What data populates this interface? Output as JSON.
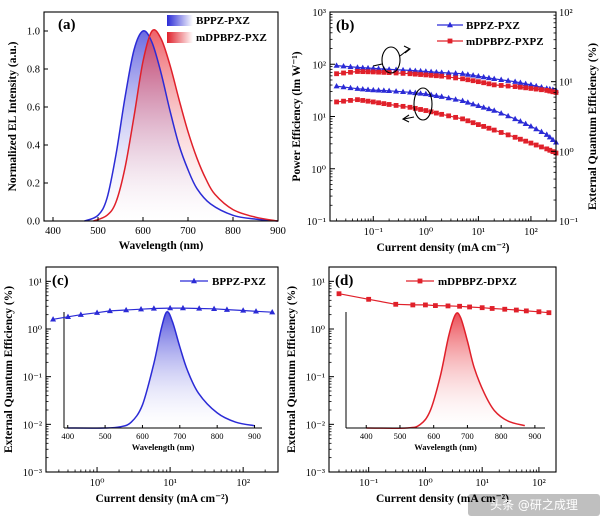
{
  "chart_data": [
    {
      "id": "a",
      "type": "area",
      "panel_label": "(a)",
      "xlabel": "Wavelength (nm)",
      "ylabel": "Normalized EL Intensity (a.u.)",
      "xlim": [
        380,
        900
      ],
      "ylim": [
        0,
        1.1
      ],
      "xticks": [
        "400",
        "500",
        "600",
        "700",
        "800",
        "900"
      ],
      "yticks": [
        "0.0",
        "0.2",
        "0.4",
        "0.6",
        "0.8",
        "1.0"
      ],
      "legend": [
        "BPPZ-PXZ",
        "mDPBPZ-PXZ"
      ],
      "series": [
        {
          "name": "BPPZ-PXZ",
          "color": "#2b2bd6",
          "peak": 601,
          "x": [
            470,
            500,
            520,
            540,
            560,
            580,
            600,
            620,
            640,
            660,
            680,
            700,
            720,
            750,
            800,
            850,
            900
          ],
          "y": [
            0.0,
            0.03,
            0.12,
            0.35,
            0.65,
            0.9,
            1.0,
            0.94,
            0.78,
            0.58,
            0.4,
            0.27,
            0.17,
            0.09,
            0.03,
            0.01,
            0.0
          ]
        },
        {
          "name": "mDPBPZ-PXZ",
          "color": "#e0202a",
          "peak": 622,
          "x": [
            490,
            520,
            540,
            560,
            580,
            600,
            620,
            640,
            660,
            680,
            700,
            720,
            740,
            760,
            800,
            850,
            900
          ],
          "y": [
            0.0,
            0.03,
            0.1,
            0.28,
            0.55,
            0.84,
            1.0,
            0.96,
            0.82,
            0.64,
            0.47,
            0.33,
            0.22,
            0.14,
            0.06,
            0.02,
            0.0
          ]
        }
      ]
    },
    {
      "id": "b",
      "type": "line",
      "panel_label": "(b)",
      "xlabel": "Current density (mA cm⁻²)",
      "ylabel": "Power Efficiency (lm W⁻¹)",
      "ylabel_right": "External Quantum Efficiency (%)",
      "xscale": "log",
      "yscale": "log",
      "xlim": [
        0.015,
        300
      ],
      "ylim": [
        0.1,
        1000
      ],
      "ylim_right": [
        0.1,
        100
      ],
      "xticks": [
        "10⁻¹",
        "10⁰",
        "10¹",
        "10²"
      ],
      "yticks": [
        "10⁻¹",
        "10⁰",
        "10¹",
        "10²",
        "10³"
      ],
      "yticks_right": [
        "10⁻¹",
        "10⁰",
        "10¹",
        "10²"
      ],
      "legend": [
        "BPPZ-PXZ",
        "mDPBPZ-PXPZ"
      ],
      "series": [
        {
          "name": "BPPZ-PXZ PE",
          "color": "#2b2bd6",
          "marker": "triangle",
          "x": [
            0.02,
            0.05,
            0.1,
            0.2,
            0.5,
            1,
            2,
            5,
            10,
            20,
            50,
            100,
            200,
            300
          ],
          "y": [
            38,
            34,
            32,
            31,
            29,
            27,
            24,
            20,
            16,
            13,
            9,
            6.5,
            4.5,
            3.2
          ]
        },
        {
          "name": "BPPZ-PXZ EQE",
          "color": "#2b2bd6",
          "marker": "triangle",
          "x": [
            0.02,
            0.05,
            0.1,
            0.2,
            0.5,
            1,
            2,
            5,
            10,
            20,
            50,
            100,
            200,
            300
          ],
          "y": [
            17,
            16,
            15.5,
            15,
            14.5,
            14,
            13.5,
            13,
            12,
            11,
            10,
            9,
            8,
            7.5
          ]
        },
        {
          "name": "mDPBPZ-PXPZ PE",
          "color": "#e0202a",
          "marker": "square",
          "x": [
            0.02,
            0.05,
            0.1,
            0.2,
            0.5,
            1,
            2,
            5,
            10,
            20,
            50,
            100,
            200,
            300
          ],
          "y": [
            19,
            21,
            19,
            17,
            15,
            13,
            11,
            9,
            7,
            5.5,
            4,
            3.1,
            2.4,
            2.0
          ]
        },
        {
          "name": "mDPBPZ-PXPZ EQE",
          "color": "#e0202a",
          "marker": "square",
          "x": [
            0.02,
            0.05,
            0.1,
            0.2,
            0.5,
            1,
            2,
            5,
            10,
            20,
            50,
            100,
            200,
            300
          ],
          "y": [
            13,
            14,
            13.8,
            13.5,
            13,
            12.5,
            12,
            11,
            10,
            9,
            8.5,
            8,
            7.5,
            7
          ]
        }
      ]
    },
    {
      "id": "c",
      "type": "line",
      "panel_label": "(c)",
      "xlabel": "Current density (mA cm⁻²)",
      "ylabel": "External Quantum Efficiency (%)",
      "xscale": "log",
      "yscale": "log",
      "xlim": [
        0.2,
        300
      ],
      "ylim": [
        0.001,
        20
      ],
      "xticks": [
        "10⁰",
        "10¹",
        "10²"
      ],
      "yticks": [
        "10⁻³",
        "10⁻²",
        "10⁻¹",
        "10⁰",
        "10¹"
      ],
      "legend": [
        "BPPZ-PXZ"
      ],
      "series": [
        {
          "name": "BPPZ-PXZ",
          "color": "#2b2bd6",
          "marker": "triangle",
          "x": [
            0.25,
            0.4,
            0.6,
            1,
            1.5,
            2.5,
            4,
            6,
            10,
            15,
            25,
            40,
            60,
            100,
            150,
            250
          ],
          "y": [
            1.6,
            1.8,
            2.0,
            2.2,
            2.4,
            2.5,
            2.6,
            2.7,
            2.75,
            2.75,
            2.7,
            2.65,
            2.55,
            2.45,
            2.35,
            2.25
          ]
        }
      ],
      "inset": {
        "xlabel": "Wavelength (nm)",
        "xlim": [
          390,
          920
        ],
        "xticks": [
          "400",
          "500",
          "600",
          "700",
          "800",
          "900"
        ],
        "color": "#2b2bd6",
        "x": [
          400,
          500,
          540,
          570,
          600,
          630,
          650,
          665,
          680,
          700,
          720,
          750,
          800,
          850,
          900
        ],
        "y": [
          0.0,
          0.0,
          0.01,
          0.05,
          0.2,
          0.55,
          0.85,
          1.0,
          0.92,
          0.7,
          0.5,
          0.3,
          0.13,
          0.05,
          0.02
        ]
      }
    },
    {
      "id": "d",
      "type": "line",
      "panel_label": "(d)",
      "xlabel": "Current density (mA cm⁻²)",
      "ylabel": "External Quantum Efficiency (%)",
      "xscale": "log",
      "yscale": "log",
      "xlim": [
        0.02,
        200
      ],
      "ylim": [
        0.001,
        20
      ],
      "xticks": [
        "10⁻¹",
        "10⁰",
        "10¹",
        "10²"
      ],
      "yticks": [
        "10⁻³",
        "10⁻²",
        "10⁻¹",
        "10⁰",
        "10¹"
      ],
      "legend": [
        "mDPBPZ-DPXZ"
      ],
      "series": [
        {
          "name": "mDPBPZ-DPXZ",
          "color": "#e0202a",
          "marker": "square",
          "x": [
            0.03,
            0.1,
            0.3,
            0.6,
            1,
            1.5,
            2.5,
            4,
            6,
            10,
            15,
            25,
            40,
            60,
            100,
            150
          ],
          "y": [
            5.5,
            4.2,
            3.3,
            3.2,
            3.2,
            3.1,
            3.05,
            3.0,
            2.9,
            2.8,
            2.7,
            2.6,
            2.5,
            2.4,
            2.3,
            2.2
          ]
        }
      ],
      "inset": {
        "xlabel": "Wavelength (nm)",
        "xlim": [
          340,
          930
        ],
        "xticks": [
          "400",
          "500",
          "600",
          "700",
          "800",
          "900"
        ],
        "color": "#e0202a",
        "x": [
          400,
          520,
          560,
          590,
          620,
          645,
          665,
          680,
          700,
          720,
          750,
          780,
          820,
          870
        ],
        "y": [
          0.0,
          0.0,
          0.03,
          0.15,
          0.45,
          0.8,
          0.98,
          0.95,
          0.75,
          0.52,
          0.3,
          0.15,
          0.06,
          0.02
        ]
      }
    }
  ],
  "watermark": "头条 @研之成理"
}
